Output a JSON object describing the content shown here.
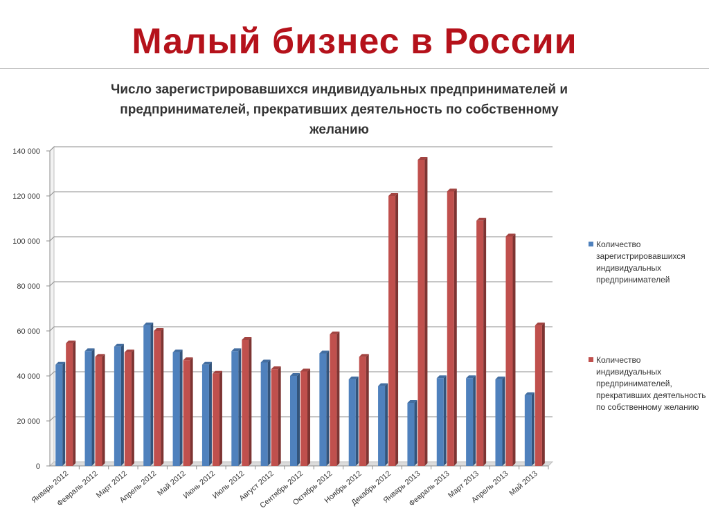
{
  "slide": {
    "title": "Малый бизнес в России"
  },
  "chart_data": {
    "type": "bar",
    "title_lines": [
      "Число зарегистрировавшихся индивидуальных предпринимателей и",
      "предпринимателей, прекративших деятельность по собственному",
      "желанию"
    ],
    "categories": [
      "Январь 2012",
      "Февраль 2012",
      "Март 2012",
      "Апрель 2012",
      "Май 2012",
      "Июнь 2012",
      "Июль 2012",
      "Август 2012",
      "Сентябрь 2012",
      "Октябрь 2012",
      "Ноябрь 2012",
      "Декабрь 2012",
      "Январь 2013",
      "Февраль 2013",
      "Март 2013",
      "Апрель 2013",
      "Май 2013"
    ],
    "series": [
      {
        "name": "Количество зарегистрировавшихся индивидуальных предпринимателей",
        "color": "#4f81bd",
        "values": [
          45000,
          51000,
          53000,
          62500,
          50500,
          45000,
          51000,
          46000,
          40000,
          50000,
          38500,
          35500,
          28000,
          39000,
          39000,
          38500,
          31500
        ]
      },
      {
        "name": "Количество индивидуальных предпринимателей, прекративших деятельность по собственному желанию",
        "color": "#c0504d",
        "values": [
          54500,
          48500,
          50500,
          60000,
          47000,
          41000,
          56000,
          43000,
          42000,
          58500,
          48500,
          120000,
          136000,
          122000,
          109000,
          102000,
          62500
        ]
      }
    ],
    "ylim": [
      0,
      140000
    ],
    "yticks": [
      0,
      20000,
      40000,
      60000,
      80000,
      100000,
      120000,
      140000
    ],
    "ytick_labels": [
      "0",
      "20 000",
      "40 000",
      "60 000",
      "80 000",
      "100 000",
      "120 000",
      "140 000"
    ],
    "grid": true,
    "legend_position": "right"
  }
}
